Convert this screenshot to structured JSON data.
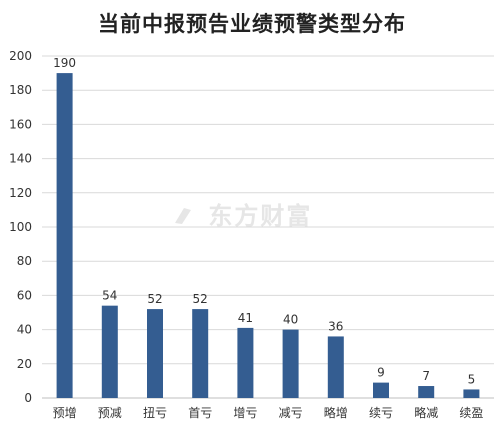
{
  "colors": {
    "bar": "#345d91",
    "grid": "#d9d9d9",
    "axis_text": "#333333",
    "title": "#222222",
    "watermark": "#e6e6e6"
  },
  "watermark": {
    "text": "东方财富"
  },
  "chart_data": {
    "type": "bar",
    "title": "当前中报预告业绩预警类型分布",
    "xlabel": "",
    "ylabel": "",
    "categories": [
      "预增",
      "预减",
      "扭亏",
      "首亏",
      "增亏",
      "减亏",
      "略增",
      "续亏",
      "略减",
      "续盈"
    ],
    "values": [
      190,
      54,
      52,
      52,
      41,
      40,
      36,
      9,
      7,
      5
    ],
    "data_labels": [
      "190",
      "54",
      "52",
      "52",
      "41",
      "40",
      "36",
      "9",
      "7",
      "5"
    ],
    "ylim": [
      0,
      200
    ],
    "yticks": [
      0,
      20,
      40,
      60,
      80,
      100,
      120,
      140,
      160,
      180,
      200
    ],
    "grid": true,
    "legend": "none"
  }
}
